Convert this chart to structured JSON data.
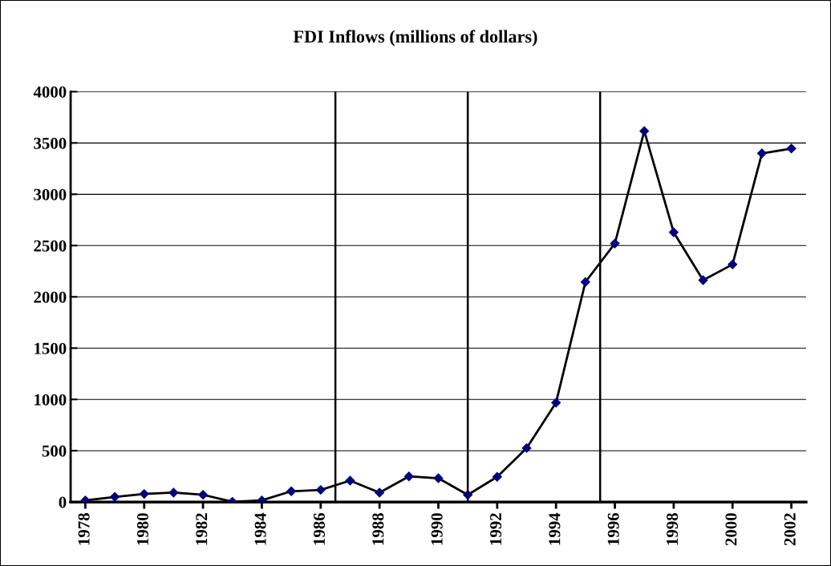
{
  "chart_data": {
    "type": "line",
    "title": "FDI Inflows (millions of dollars)",
    "x": [
      1978,
      1979,
      1980,
      1981,
      1982,
      1983,
      1984,
      1985,
      1986,
      1987,
      1988,
      1989,
      1990,
      1991,
      1992,
      1993,
      1994,
      1995,
      1996,
      1997,
      1998,
      1999,
      2000,
      2001,
      2002
    ],
    "series": [
      {
        "color": "#000000",
        "colors": [
          "#000080",
          "#000080",
          "#000080",
          "#000080",
          "#000080",
          "#000080",
          "#000080",
          "#000080",
          "#000080",
          "#000080",
          "#000080",
          "#000080",
          "#000080",
          "#000080",
          "#000080",
          "#000080",
          "#000080",
          "#000080",
          "#000080",
          "#000080",
          "#000080",
          "#000080",
          "#000080",
          "#000080",
          "#000080"
        ],
        "values": [
          16,
          50,
          79,
          92,
          71,
          3,
          16,
          105,
          118,
          209,
          92,
          250,
          232,
          70,
          246,
          526,
          968,
          2145,
          2520,
          3617,
          2629,
          2162,
          2316,
          3399,
          3446
        ]
      }
    ],
    "xlim": [
      1977.5,
      2002.5
    ],
    "xticks": [
      1978,
      1980,
      1982,
      1984,
      1986,
      1988,
      1990,
      1992,
      1994,
      1996,
      1998,
      2000,
      2002
    ],
    "ylim": [
      0,
      4000
    ],
    "yticks": [
      0,
      500,
      1000,
      1500,
      2000,
      2500,
      3000,
      3500,
      4000
    ],
    "ref_lines": [
      {
        "axis": "x",
        "value": 1986.5,
        "color": "#000000"
      },
      {
        "axis": "x",
        "value": 1991,
        "color": "#000000"
      },
      {
        "axis": "x",
        "value": 1995.5,
        "color": "#000000"
      }
    ],
    "grid": "y",
    "marker": "diamond",
    "line_style": "solid"
  }
}
